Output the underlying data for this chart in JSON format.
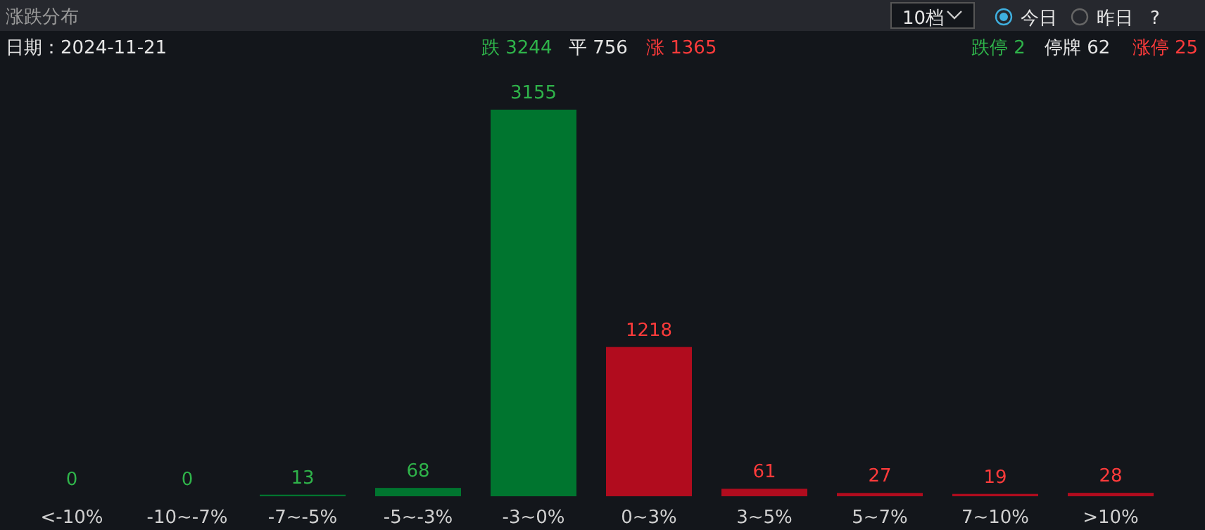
{
  "chart_data": {
    "type": "bar",
    "title": "涨跌分布",
    "categories": [
      "<-10%",
      "-10~-7%",
      "-7~-5%",
      "-5~-3%",
      "-3~0%",
      "0~3%",
      "3~5%",
      "5~7%",
      "7~10%",
      ">10%"
    ],
    "values": [
      0,
      0,
      13,
      68,
      3155,
      1218,
      61,
      27,
      19,
      28
    ],
    "colors": [
      "#00752f",
      "#00752f",
      "#00752f",
      "#00752f",
      "#00752f",
      "#b10c1e",
      "#b10c1e",
      "#b10c1e",
      "#b10c1e",
      "#b10c1e"
    ],
    "data_labels": true,
    "annotations": [
      "日期：2024-11-21",
      "跌 3244",
      "平 756",
      "涨 1365",
      "跌停 2",
      "停牌 62",
      "涨停 25",
      "10档",
      "今日",
      "昨日",
      "?"
    ]
  }
}
